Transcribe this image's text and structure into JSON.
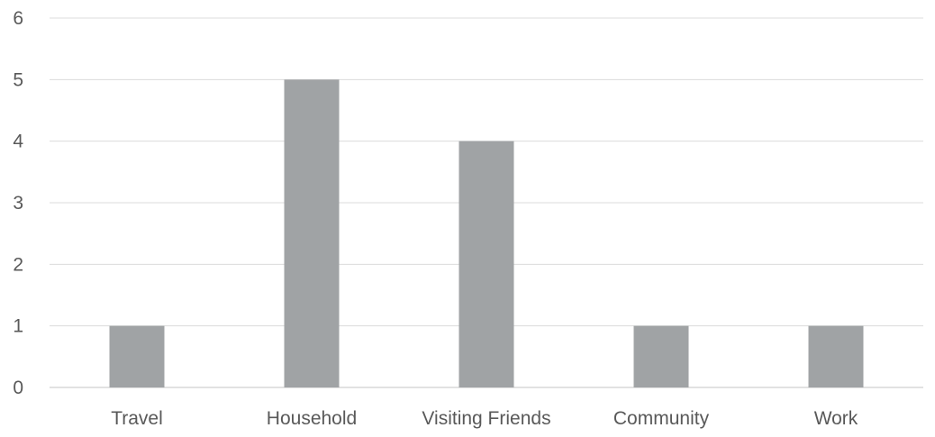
{
  "colors": {
    "bar": "#a0a3a5",
    "gridline": "#dcdcdc",
    "text": "#595959",
    "background": "#ffffff"
  },
  "chart_data": {
    "type": "bar",
    "title": "",
    "xlabel": "",
    "ylabel": "",
    "categories": [
      "Travel",
      "Household",
      "Visiting Friends",
      "Community",
      "Work"
    ],
    "values": [
      1,
      5,
      4,
      1,
      1
    ],
    "ylim": [
      0,
      6
    ],
    "yticks": [
      "0",
      "1",
      "2",
      "3",
      "4",
      "5",
      "6"
    ],
    "grid": true,
    "legend": "none"
  }
}
